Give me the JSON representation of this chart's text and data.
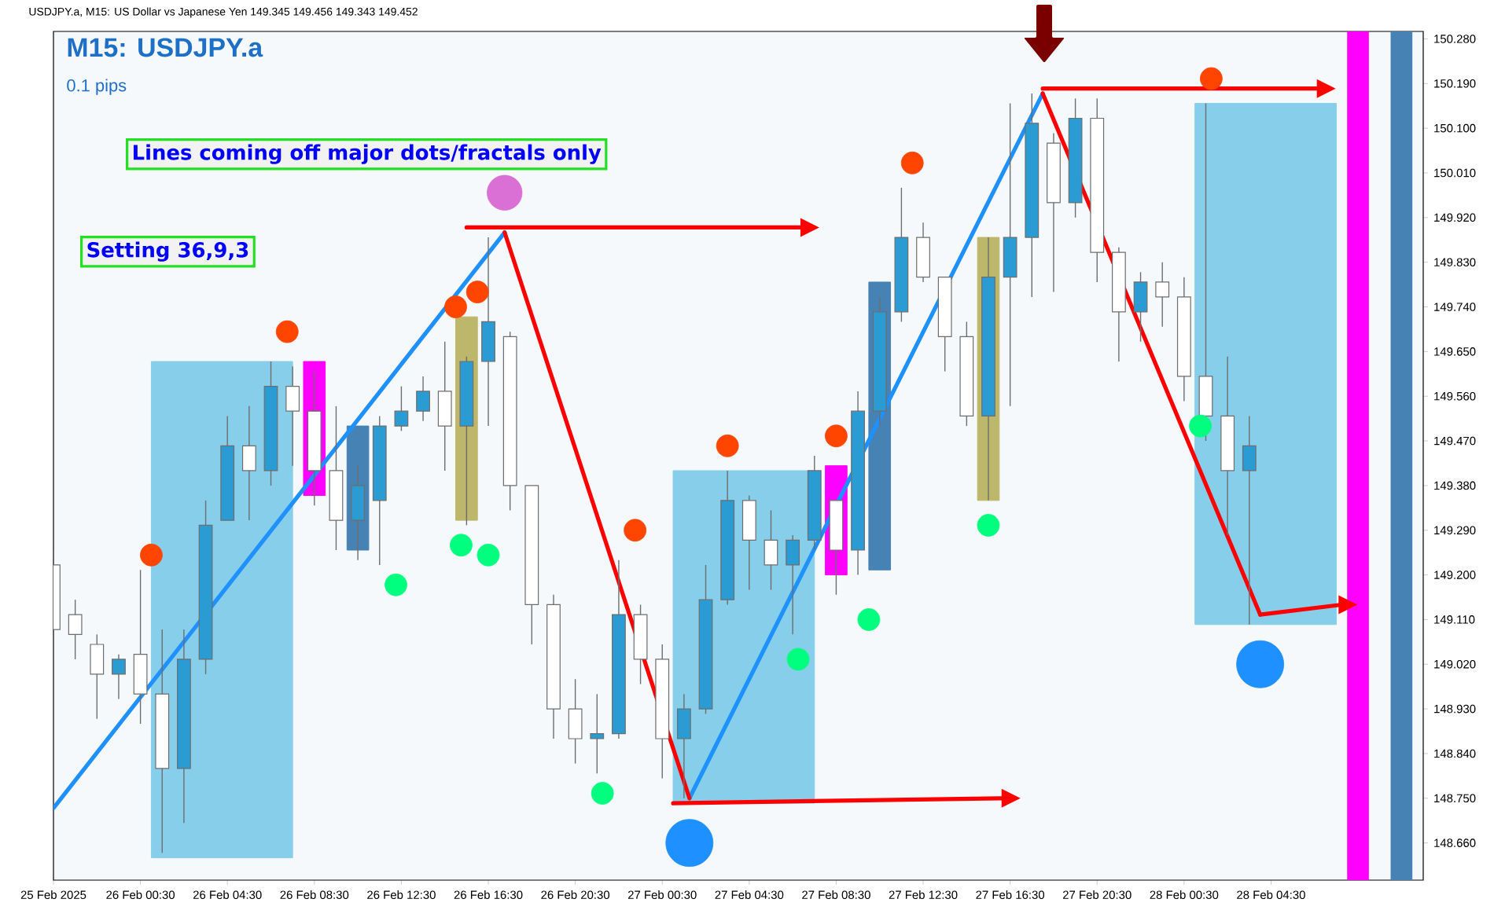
{
  "chart_data": {
    "type": "candlestick",
    "title": "M15: USDJPY.a",
    "subtitle": "0.1 pips",
    "annotations": [
      "USDJPY.a, M15: US Dollar vs Japanese Yen 149.345 149.456 149.343 149.452",
      "Lines coming off major dots/fractals only",
      "Setting 36,9,3"
    ],
    "x": [
      "2025-02-25T20:30",
      "2025-02-25T21:30",
      "2025-02-25T22:30",
      "2025-02-25T23:30",
      "2025-02-26T00:30",
      "2025-02-26T01:30",
      "2025-02-26T02:30",
      "2025-02-26T03:30",
      "2025-02-26T04:30",
      "2025-02-26T05:30",
      "2025-02-26T06:30",
      "2025-02-26T07:30",
      "2025-02-26T08:30",
      "2025-02-26T09:30",
      "2025-02-26T10:30",
      "2025-02-26T11:30",
      "2025-02-26T12:30",
      "2025-02-26T13:30",
      "2025-02-26T14:30",
      "2025-02-26T15:30",
      "2025-02-26T16:30",
      "2025-02-26T17:30",
      "2025-02-26T18:30",
      "2025-02-26T19:30",
      "2025-02-26T20:30",
      "2025-02-26T21:30",
      "2025-02-26T22:30",
      "2025-02-26T23:30",
      "2025-02-27T00:30",
      "2025-02-27T01:30",
      "2025-02-27T02:30",
      "2025-02-27T03:30",
      "2025-02-27T04:30",
      "2025-02-27T05:30",
      "2025-02-27T06:30",
      "2025-02-27T07:30",
      "2025-02-27T08:30",
      "2025-02-27T09:30",
      "2025-02-27T10:30",
      "2025-02-27T11:30",
      "2025-02-27T12:30",
      "2025-02-27T13:30",
      "2025-02-27T14:30",
      "2025-02-27T15:30",
      "2025-02-27T16:30",
      "2025-02-27T17:30",
      "2025-02-27T18:30",
      "2025-02-27T19:30",
      "2025-02-27T20:30",
      "2025-02-27T21:30",
      "2025-02-27T22:30",
      "2025-02-27T23:30",
      "2025-02-28T00:30",
      "2025-02-28T01:30",
      "2025-02-28T02:30",
      "2025-02-28T03:30"
    ],
    "ohlc": [
      [
        149.22,
        149.25,
        149.03,
        149.09
      ],
      [
        149.12,
        149.15,
        149.03,
        149.08
      ],
      [
        149.06,
        149.08,
        148.91,
        149.0
      ],
      [
        149.0,
        149.04,
        148.95,
        149.03
      ],
      [
        149.04,
        149.21,
        148.9,
        148.96
      ],
      [
        148.96,
        149.09,
        148.64,
        148.81
      ],
      [
        148.81,
        149.09,
        148.7,
        149.03
      ],
      [
        149.03,
        149.35,
        149.0,
        149.3
      ],
      [
        149.31,
        149.52,
        149.31,
        149.46
      ],
      [
        149.46,
        149.54,
        149.31,
        149.41
      ],
      [
        149.41,
        149.63,
        149.38,
        149.58
      ],
      [
        149.58,
        149.62,
        149.42,
        149.53
      ],
      [
        149.53,
        149.61,
        149.34,
        149.41
      ],
      [
        149.41,
        149.54,
        149.25,
        149.31
      ],
      [
        149.31,
        149.42,
        149.23,
        149.38
      ],
      [
        149.35,
        149.52,
        149.22,
        149.5
      ],
      [
        149.5,
        149.58,
        149.49,
        149.53
      ],
      [
        149.53,
        149.6,
        149.51,
        149.57
      ],
      [
        149.57,
        149.67,
        149.41,
        149.5
      ],
      [
        149.5,
        149.64,
        149.3,
        149.63
      ],
      [
        149.63,
        149.88,
        149.5,
        149.71
      ],
      [
        149.68,
        149.69,
        149.33,
        149.38
      ],
      [
        149.38,
        149.38,
        149.06,
        149.14
      ],
      [
        149.14,
        149.16,
        148.87,
        148.93
      ],
      [
        148.93,
        148.99,
        148.82,
        148.87
      ],
      [
        148.87,
        148.96,
        148.8,
        148.88
      ],
      [
        148.88,
        149.23,
        148.87,
        149.12
      ],
      [
        149.12,
        149.14,
        148.98,
        149.03
      ],
      [
        149.03,
        149.06,
        148.79,
        148.87
      ],
      [
        148.87,
        148.96,
        148.75,
        148.93
      ],
      [
        148.93,
        149.22,
        148.92,
        149.15
      ],
      [
        149.15,
        149.41,
        149.14,
        149.35
      ],
      [
        149.35,
        149.36,
        149.17,
        149.27
      ],
      [
        149.27,
        149.33,
        149.17,
        149.22
      ],
      [
        149.22,
        149.28,
        149.08,
        149.27
      ],
      [
        149.27,
        149.44,
        149.25,
        149.41
      ],
      [
        149.35,
        149.35,
        149.16,
        149.25
      ],
      [
        149.25,
        149.57,
        149.2,
        149.53
      ],
      [
        149.53,
        149.76,
        149.5,
        149.73
      ],
      [
        149.73,
        149.98,
        149.71,
        149.88
      ],
      [
        149.88,
        149.91,
        149.79,
        149.8
      ],
      [
        149.8,
        149.8,
        149.61,
        149.68
      ],
      [
        149.68,
        149.71,
        149.5,
        149.52
      ],
      [
        149.52,
        149.88,
        149.35,
        149.8
      ],
      [
        149.8,
        150.15,
        149.54,
        149.88
      ],
      [
        149.88,
        150.17,
        149.76,
        150.11
      ],
      [
        150.07,
        150.09,
        149.77,
        149.95
      ],
      [
        149.95,
        150.16,
        149.92,
        150.12
      ],
      [
        150.12,
        150.16,
        149.79,
        149.85
      ],
      [
        149.85,
        149.86,
        149.63,
        149.73
      ],
      [
        149.73,
        149.81,
        149.67,
        149.79
      ],
      [
        149.79,
        149.83,
        149.7,
        149.76
      ],
      [
        149.76,
        149.8,
        149.55,
        149.6
      ],
      [
        149.6,
        150.15,
        149.47,
        149.52
      ],
      [
        149.52,
        149.64,
        149.28,
        149.41
      ],
      [
        149.41,
        149.52,
        149.1,
        149.46
      ]
    ],
    "xlim": [
      "2025-02-25T20:30",
      "2025-02-28T11:30"
    ],
    "ylim": [
      148.585,
      150.295
    ],
    "xticks": [
      {
        "value": "2025-02-25T20:30",
        "label": "25 Feb 2025"
      },
      {
        "value": "2025-02-26T00:30",
        "label": "26 Feb 00:30"
      },
      {
        "value": "2025-02-26T04:30",
        "label": "26 Feb 04:30"
      },
      {
        "value": "2025-02-26T08:30",
        "label": "26 Feb 08:30"
      },
      {
        "value": "2025-02-26T12:30",
        "label": "26 Feb 12:30"
      },
      {
        "value": "2025-02-26T16:30",
        "label": "26 Feb 16:30"
      },
      {
        "value": "2025-02-26T20:30",
        "label": "26 Feb 20:30"
      },
      {
        "value": "2025-02-27T00:30",
        "label": "27 Feb 00:30"
      },
      {
        "value": "2025-02-27T04:30",
        "label": "27 Feb 04:30"
      },
      {
        "value": "2025-02-27T08:30",
        "label": "27 Feb 08:30"
      },
      {
        "value": "2025-02-27T12:30",
        "label": "27 Feb 12:30"
      },
      {
        "value": "2025-02-27T16:30",
        "label": "27 Feb 16:30"
      },
      {
        "value": "2025-02-27T20:30",
        "label": "27 Feb 20:30"
      },
      {
        "value": "2025-02-28T00:30",
        "label": "28 Feb 00:30"
      },
      {
        "value": "2025-02-28T04:30",
        "label": "28 Feb 04:30"
      }
    ],
    "yticks": [
      {
        "value": 148.66,
        "label": "148.660"
      },
      {
        "value": 148.75,
        "label": "148.750"
      },
      {
        "value": 148.84,
        "label": "148.840"
      },
      {
        "value": 148.93,
        "label": "148.930"
      },
      {
        "value": 149.02,
        "label": "149.020"
      },
      {
        "value": 149.11,
        "label": "149.110"
      },
      {
        "value": 149.2,
        "label": "149.200"
      },
      {
        "value": 149.29,
        "label": "149.290"
      },
      {
        "value": 149.38,
        "label": "149.380"
      },
      {
        "value": 149.47,
        "label": "149.470"
      },
      {
        "value": 149.56,
        "label": "149.560"
      },
      {
        "value": 149.65,
        "label": "149.650"
      },
      {
        "value": 149.74,
        "label": "149.740"
      },
      {
        "value": 149.83,
        "label": "149.830"
      },
      {
        "value": 149.92,
        "label": "149.920"
      },
      {
        "value": 150.01,
        "label": "150.010"
      },
      {
        "value": 150.1,
        "label": "150.100"
      },
      {
        "value": 150.19,
        "label": "150.190"
      },
      {
        "value": 150.28,
        "label": "150.280"
      }
    ],
    "bands": [
      {
        "axis": "x",
        "from": "2025-02-28T08:00",
        "to": "2025-02-28T09:00",
        "color": "#ff00ff"
      },
      {
        "axis": "x",
        "from": "2025-02-28T10:00",
        "to": "2025-02-28T11:00",
        "color": "#4682b4"
      }
    ],
    "series": [
      {
        "type": "line",
        "color": "#87ceeb",
        "x": [
          "2025-02-26T01:00",
          "2025-02-26T07:30"
        ],
        "values": [
          null,
          null
        ],
        "upper": [
          149.63,
          149.63
        ],
        "lower": [
          148.63,
          148.63
        ]
      },
      {
        "type": "line",
        "color": "#87ceeb",
        "x": [
          "2025-02-27T01:00",
          "2025-02-27T07:30"
        ],
        "values": [
          null,
          null
        ],
        "upper": [
          149.41,
          149.41
        ],
        "lower": [
          148.74,
          148.74
        ]
      },
      {
        "type": "line",
        "color": "#87ceeb",
        "x": [
          "2025-02-28T01:00",
          "2025-02-28T07:30"
        ],
        "values": [
          null,
          null
        ],
        "upper": [
          150.15,
          150.15
        ],
        "lower": [
          149.1,
          149.1
        ]
      },
      {
        "type": "line",
        "color": "#ff00ff",
        "x": [
          "2025-02-26T08:00",
          "2025-02-26T09:00"
        ],
        "values": [
          null,
          null
        ],
        "upper": [
          149.63,
          149.63
        ],
        "lower": [
          149.36,
          149.36
        ]
      },
      {
        "type": "line",
        "color": "#ff00ff",
        "x": [
          "2025-02-27T08:00",
          "2025-02-27T09:00"
        ],
        "values": [
          null,
          null
        ],
        "upper": [
          149.42,
          149.42
        ],
        "lower": [
          149.2,
          149.2
        ]
      },
      {
        "type": "line",
        "color": "#bdb76b",
        "x": [
          "2025-02-26T15:00",
          "2025-02-26T16:00"
        ],
        "values": [
          null,
          null
        ],
        "upper": [
          149.72,
          149.72
        ],
        "lower": [
          149.31,
          149.31
        ]
      },
      {
        "type": "line",
        "color": "#bdb76b",
        "x": [
          "2025-02-27T15:00",
          "2025-02-27T16:00"
        ],
        "values": [
          null,
          null
        ],
        "upper": [
          149.88,
          149.88
        ],
        "lower": [
          149.35,
          149.35
        ]
      },
      {
        "type": "line",
        "color": "#4682b4",
        "x": [
          "2025-02-26T10:00",
          "2025-02-26T11:00"
        ],
        "values": [
          null,
          null
        ],
        "upper": [
          149.5,
          149.5
        ],
        "lower": [
          149.25,
          149.25
        ]
      },
      {
        "type": "line",
        "color": "#4682b4",
        "x": [
          "2025-02-27T10:00",
          "2025-02-27T11:00"
        ],
        "values": [
          null,
          null
        ],
        "upper": [
          149.79,
          149.79
        ],
        "lower": [
          149.21,
          149.21
        ]
      },
      {
        "type": "line",
        "color": "#1e90ff",
        "x": [
          "2025-02-25T20:30",
          "2025-02-26T17:15",
          "2025-02-26T21:00",
          "2025-02-27T01:45",
          "2025-02-27T18:00"
        ],
        "values": [
          148.73,
          149.89,
          null,
          148.75,
          150.17
        ]
      },
      {
        "type": "line",
        "color": "#ff0000",
        "x": [
          "2025-02-26T17:15",
          "2025-02-27T01:45",
          "2025-02-27T06:00",
          "2025-02-27T18:00",
          "2025-02-28T04:00"
        ],
        "values": [
          149.89,
          148.75,
          null,
          150.17,
          149.12
        ]
      },
      {
        "type": "line",
        "color": "#ff0000",
        "x": [
          "2025-02-26T15:30",
          "2025-02-27T07:00"
        ],
        "values": [
          149.9,
          149.9
        ]
      },
      {
        "type": "line",
        "color": "#ff0000",
        "x": [
          "2025-02-27T01:00",
          "2025-02-27T16:15"
        ],
        "values": [
          148.74,
          148.75
        ]
      },
      {
        "type": "line",
        "color": "#ff0000",
        "x": [
          "2025-02-27T18:00",
          "2025-02-28T06:45"
        ],
        "values": [
          150.18,
          150.18
        ]
      },
      {
        "type": "line",
        "color": "#ff0000",
        "x": [
          "2025-02-28T04:00",
          "2025-02-28T07:45"
        ],
        "values": [
          149.12,
          149.14
        ]
      },
      {
        "type": "scatter",
        "color": "#ff4500",
        "marker": "circle",
        "x": [
          "2025-02-26T01:00",
          "2025-02-26T07:15",
          "2025-02-26T15:00",
          "2025-02-26T16:00",
          "2025-02-26T23:15",
          "2025-02-27T03:30",
          "2025-02-27T08:30",
          "2025-02-27T12:00",
          "2025-02-28T01:45"
        ],
        "values": [
          149.24,
          149.69,
          149.74,
          149.77,
          149.29,
          149.46,
          149.48,
          150.03,
          150.2
        ]
      },
      {
        "type": "scatter",
        "color": "#00ff7f",
        "marker": "circle",
        "x": [
          "2025-02-26T12:15",
          "2025-02-26T15:15",
          "2025-02-26T16:30",
          "2025-02-26T21:45",
          "2025-02-27T06:45",
          "2025-02-27T10:00",
          "2025-02-27T15:30",
          "2025-02-28T01:15"
        ],
        "values": [
          149.18,
          149.26,
          149.24,
          148.76,
          149.03,
          149.11,
          149.3,
          149.5
        ]
      },
      {
        "type": "bubble",
        "color": "#1e90ff",
        "x": [
          "2025-02-27T01:45",
          "2025-02-28T04:00"
        ],
        "values": [
          148.66,
          149.02
        ],
        "sizes": [
          1,
          1
        ]
      },
      {
        "type": "bubble",
        "color": "#da70d6",
        "x": [
          "2025-02-26T17:15"
        ],
        "values": [
          149.97
        ],
        "sizes": [
          0.55
        ]
      }
    ]
  }
}
